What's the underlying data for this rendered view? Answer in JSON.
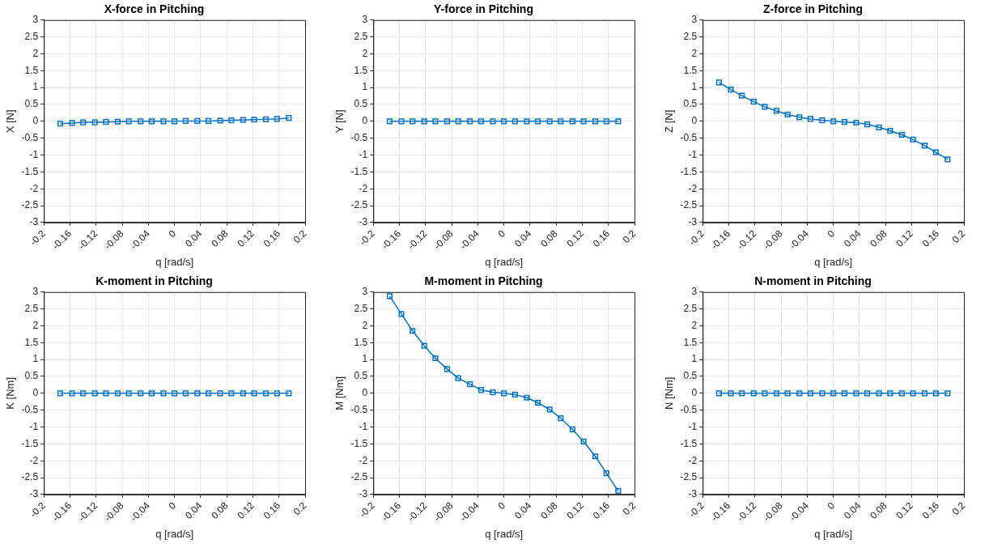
{
  "chart_data": [
    {
      "type": "line",
      "title": "X-force in Pitching",
      "xlabel": "q [rad/s]",
      "ylabel": "X [N]",
      "x": [
        -0.175,
        -0.157,
        -0.14,
        -0.122,
        -0.105,
        -0.087,
        -0.07,
        -0.052,
        -0.035,
        -0.017,
        0,
        0.017,
        0.035,
        0.052,
        0.07,
        0.087,
        0.105,
        0.122,
        0.14,
        0.157,
        0.175
      ],
      "series": [
        {
          "color": "#0072bd",
          "values": [
            -0.07,
            -0.05,
            -0.03,
            -0.03,
            -0.02,
            -0.01,
            0,
            0,
            0,
            0,
            0,
            0.01,
            0.01,
            0.01,
            0.02,
            0.03,
            0.04,
            0.05,
            0.06,
            0.07,
            0.1
          ]
        }
      ],
      "xlim": [
        -0.2,
        0.2
      ],
      "xticks": [
        -0.2,
        -0.16,
        -0.12,
        -0.08,
        -0.04,
        0,
        0.04,
        0.08,
        0.12,
        0.16,
        0.2
      ],
      "ylim": [
        -3,
        3
      ],
      "yticks": [
        -3,
        -2.5,
        -2,
        -1.5,
        -1,
        -0.5,
        0,
        0.5,
        1,
        1.5,
        2,
        2.5,
        3
      ],
      "grid": true,
      "legend": false,
      "marker": "square",
      "line_style": "solid"
    },
    {
      "type": "line",
      "title": "Y-force in Pitching",
      "xlabel": "q [rad/s]",
      "ylabel": "Y [N]",
      "x": [
        -0.175,
        -0.157,
        -0.14,
        -0.122,
        -0.105,
        -0.087,
        -0.07,
        -0.052,
        -0.035,
        -0.017,
        0,
        0.017,
        0.035,
        0.052,
        0.07,
        0.087,
        0.105,
        0.122,
        0.14,
        0.157,
        0.175
      ],
      "series": [
        {
          "color": "#0072bd",
          "values": [
            0,
            0,
            0,
            0,
            0,
            0,
            0,
            0,
            0,
            0,
            0,
            0,
            0,
            0,
            0,
            0,
            0,
            0,
            0,
            0,
            0
          ]
        }
      ],
      "xlim": [
        -0.2,
        0.2
      ],
      "xticks": [
        -0.2,
        -0.16,
        -0.12,
        -0.08,
        -0.04,
        0,
        0.04,
        0.08,
        0.12,
        0.16,
        0.2
      ],
      "ylim": [
        -3,
        3
      ],
      "yticks": [
        -3,
        -2.5,
        -2,
        -1.5,
        -1,
        -0.5,
        0,
        0.5,
        1,
        1.5,
        2,
        2.5,
        3
      ],
      "grid": true,
      "legend": false,
      "marker": "square",
      "line_style": "solid"
    },
    {
      "type": "line",
      "title": "Z-force in Pitching",
      "xlabel": "q [rad/s]",
      "ylabel": "Z [N]",
      "x": [
        -0.175,
        -0.157,
        -0.14,
        -0.122,
        -0.105,
        -0.087,
        -0.07,
        -0.052,
        -0.035,
        -0.017,
        0,
        0.017,
        0.035,
        0.052,
        0.07,
        0.087,
        0.105,
        0.122,
        0.14,
        0.157,
        0.175
      ],
      "series": [
        {
          "color": "#0072bd",
          "values": [
            1.15,
            0.94,
            0.76,
            0.58,
            0.43,
            0.31,
            0.2,
            0.12,
            0.07,
            0.03,
            0,
            -0.02,
            -0.04,
            -0.09,
            -0.18,
            -0.28,
            -0.4,
            -0.54,
            -0.72,
            -0.92,
            -1.13
          ]
        }
      ],
      "xlim": [
        -0.2,
        0.2
      ],
      "xticks": [
        -0.2,
        -0.16,
        -0.12,
        -0.08,
        -0.04,
        0,
        0.04,
        0.08,
        0.12,
        0.16,
        0.2
      ],
      "ylim": [
        -3,
        3
      ],
      "yticks": [
        -3,
        -2.5,
        -2,
        -1.5,
        -1,
        -0.5,
        0,
        0.5,
        1,
        1.5,
        2,
        2.5,
        3
      ],
      "grid": true,
      "legend": false,
      "marker": "square",
      "line_style": "solid"
    },
    {
      "type": "line",
      "title": "K-moment in Pitching",
      "xlabel": "q [rad/s]",
      "ylabel": "K [Nm]",
      "x": [
        -0.175,
        -0.157,
        -0.14,
        -0.122,
        -0.105,
        -0.087,
        -0.07,
        -0.052,
        -0.035,
        -0.017,
        0,
        0.017,
        0.035,
        0.052,
        0.07,
        0.087,
        0.105,
        0.122,
        0.14,
        0.157,
        0.175
      ],
      "series": [
        {
          "color": "#0072bd",
          "values": [
            0,
            0,
            0,
            0,
            0,
            0,
            0,
            0,
            0,
            0,
            0,
            0,
            0,
            0,
            0,
            0,
            0,
            0,
            0,
            0,
            0
          ]
        }
      ],
      "xlim": [
        -0.2,
        0.2
      ],
      "xticks": [
        -0.2,
        -0.16,
        -0.12,
        -0.08,
        -0.04,
        0,
        0.04,
        0.08,
        0.12,
        0.16,
        0.2
      ],
      "ylim": [
        -3,
        3
      ],
      "yticks": [
        -3,
        -2.5,
        -2,
        -1.5,
        -1,
        -0.5,
        0,
        0.5,
        1,
        1.5,
        2,
        2.5,
        3
      ],
      "grid": true,
      "legend": false,
      "marker": "square",
      "line_style": "solid"
    },
    {
      "type": "line",
      "title": "M-moment in Pitching",
      "xlabel": "q [rad/s]",
      "ylabel": "M [Nm]",
      "x": [
        -0.175,
        -0.157,
        -0.14,
        -0.122,
        -0.105,
        -0.087,
        -0.07,
        -0.052,
        -0.035,
        -0.017,
        0,
        0.017,
        0.035,
        0.052,
        0.07,
        0.087,
        0.105,
        0.122,
        0.14,
        0.157,
        0.175
      ],
      "series": [
        {
          "color": "#0072bd",
          "values": [
            2.88,
            2.35,
            1.85,
            1.41,
            1.04,
            0.72,
            0.45,
            0.27,
            0.1,
            0.03,
            0,
            -0.04,
            -0.13,
            -0.28,
            -0.48,
            -0.74,
            -1.07,
            -1.43,
            -1.87,
            -2.37,
            -2.89
          ]
        }
      ],
      "xlim": [
        -0.2,
        0.2
      ],
      "xticks": [
        -0.2,
        -0.16,
        -0.12,
        -0.08,
        -0.04,
        0,
        0.04,
        0.08,
        0.12,
        0.16,
        0.2
      ],
      "ylim": [
        -3,
        3
      ],
      "yticks": [
        -3,
        -2.5,
        -2,
        -1.5,
        -1,
        -0.5,
        0,
        0.5,
        1,
        1.5,
        2,
        2.5,
        3
      ],
      "grid": true,
      "legend": false,
      "marker": "square",
      "line_style": "solid"
    },
    {
      "type": "line",
      "title": "N-moment in Pitching",
      "xlabel": "q [rad/s]",
      "ylabel": "N [Nm]",
      "x": [
        -0.175,
        -0.157,
        -0.14,
        -0.122,
        -0.105,
        -0.087,
        -0.07,
        -0.052,
        -0.035,
        -0.017,
        0,
        0.017,
        0.035,
        0.052,
        0.07,
        0.087,
        0.105,
        0.122,
        0.14,
        0.157,
        0.175
      ],
      "series": [
        {
          "color": "#0072bd",
          "values": [
            0,
            0,
            0,
            0,
            0,
            0,
            0,
            0,
            0,
            0,
            0,
            0,
            0,
            0,
            0,
            0,
            0,
            0,
            0,
            0,
            0
          ]
        }
      ],
      "xlim": [
        -0.2,
        0.2
      ],
      "xticks": [
        -0.2,
        -0.16,
        -0.12,
        -0.08,
        -0.04,
        0,
        0.04,
        0.08,
        0.12,
        0.16,
        0.2
      ],
      "ylim": [
        -3,
        3
      ],
      "yticks": [
        -3,
        -2.5,
        -2,
        -1.5,
        -1,
        -0.5,
        0,
        0.5,
        1,
        1.5,
        2,
        2.5,
        3
      ],
      "grid": true,
      "legend": false,
      "marker": "square",
      "line_style": "solid"
    }
  ]
}
